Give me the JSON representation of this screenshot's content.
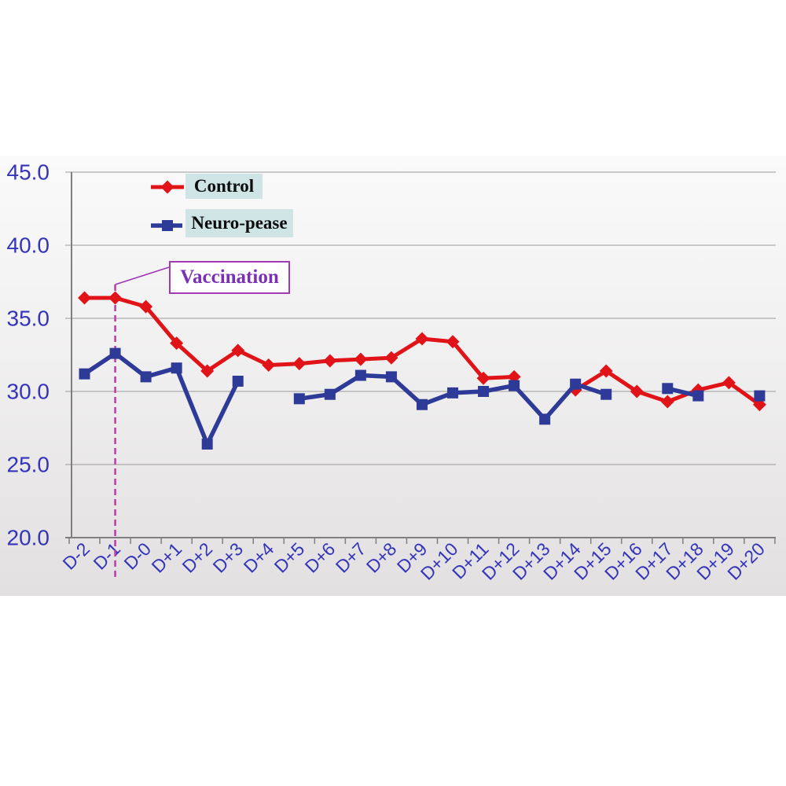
{
  "legend": {
    "items": [
      {
        "label": "Control",
        "color": "#e01418",
        "marker": "diamond"
      },
      {
        "label": "Neuro-pease",
        "color": "#2e3a97",
        "marker": "square"
      }
    ],
    "label_background": "#cfe5e5",
    "text_color": "#0d0d0d"
  },
  "annotation": {
    "label": "Vaccination",
    "at_category": "D-1",
    "text_color": "#7b2fb5",
    "border_color": "#a23ab3",
    "dashed_line_color": "#bf3aa6"
  },
  "chart_data": {
    "type": "line",
    "categories": [
      "D-2",
      "D-1",
      "D-0",
      "D+1",
      "D+2",
      "D+3",
      "D+4",
      "D+5",
      "D+6",
      "D+7",
      "D+8",
      "D+9",
      "D+10",
      "D+11",
      "D+12",
      "D+13",
      "D+14",
      "D+15",
      "D+16",
      "D+17",
      "D+18",
      "D+19",
      "D+20"
    ],
    "series": [
      {
        "name": "Control",
        "color": "#e01418",
        "marker": "diamond",
        "values": [
          36.4,
          36.4,
          35.8,
          33.3,
          31.4,
          32.8,
          31.8,
          31.9,
          32.1,
          32.2,
          32.3,
          33.6,
          33.4,
          30.9,
          31.0,
          null,
          30.1,
          31.4,
          30.0,
          29.3,
          30.1,
          30.6,
          29.1
        ]
      },
      {
        "name": "Neuro-pease",
        "color": "#2e3a97",
        "marker": "square",
        "values": [
          31.2,
          32.6,
          31.0,
          31.6,
          26.4,
          30.7,
          null,
          29.5,
          29.8,
          31.1,
          31.0,
          29.1,
          29.9,
          30.0,
          30.4,
          28.1,
          30.5,
          29.8,
          null,
          30.2,
          29.7,
          null,
          29.7
        ]
      }
    ],
    "title": "",
    "xlabel": "",
    "ylabel": "",
    "ylim": [
      20.0,
      45.0
    ],
    "ytick_step": 5.0,
    "ytick_labels": [
      "45.0",
      "40.0",
      "35.0",
      "30.0",
      "25.0",
      "20.0"
    ],
    "grid": true,
    "grid_color": "#9a9a9a",
    "axis_color": "#7f7f7f",
    "tick_label_color": "#3434bb",
    "legend_position": "top-left-inside",
    "gap_handling": "broken-line-at-missing-values"
  }
}
